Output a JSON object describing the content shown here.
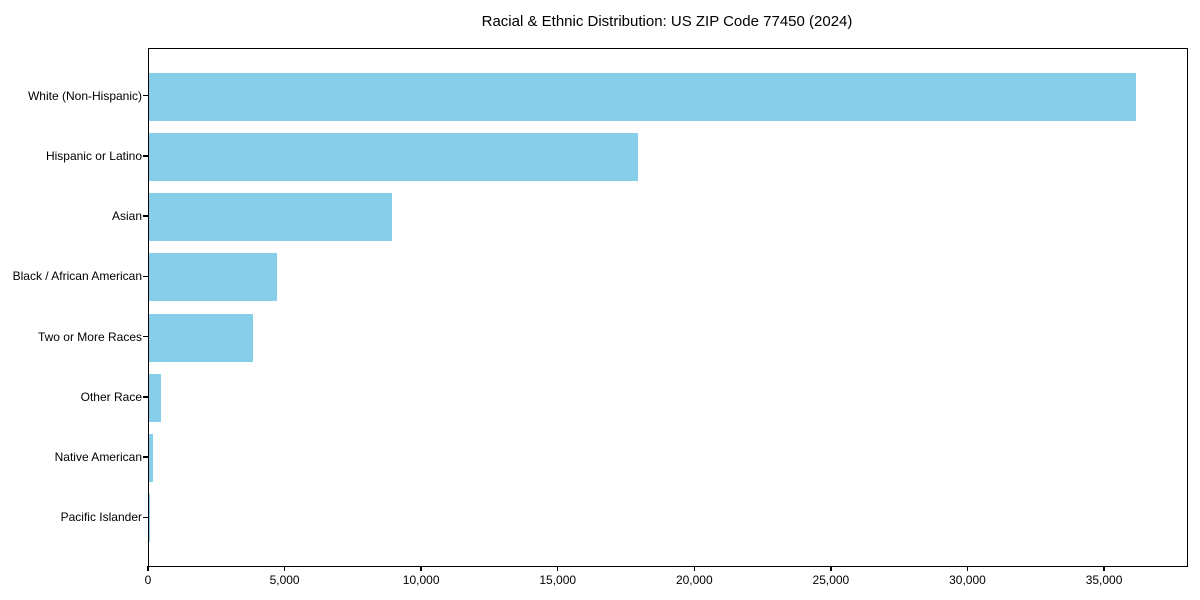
{
  "figure": {
    "background": "#ffffff",
    "frame_color": "#000000",
    "text_color": "#000000"
  },
  "chart_data": {
    "type": "bar",
    "orientation": "horizontal",
    "title": "Racial & Ethnic Distribution: US ZIP Code 77450 (2024)",
    "categories": [
      "White (Non-Hispanic)",
      "Hispanic or Latino",
      "Asian",
      "Black / African American",
      "Two or More Races",
      "Other Race",
      "Native American",
      "Pacific Islander"
    ],
    "values": [
      36150,
      17900,
      8900,
      4700,
      3800,
      450,
      150,
      25
    ],
    "xlabel": "",
    "ylabel": "",
    "xlim": [
      0,
      38000
    ],
    "x_ticks": [
      0,
      5000,
      10000,
      15000,
      20000,
      25000,
      30000,
      35000
    ],
    "x_tick_labels": [
      "0",
      "5,000",
      "10,000",
      "15,000",
      "20,000",
      "25,000",
      "30,000",
      "35,000"
    ],
    "bar_color": "#87CEEB",
    "bar_height_fraction": 0.8,
    "grid": false,
    "legend": "none",
    "first_category_on_top": true
  }
}
